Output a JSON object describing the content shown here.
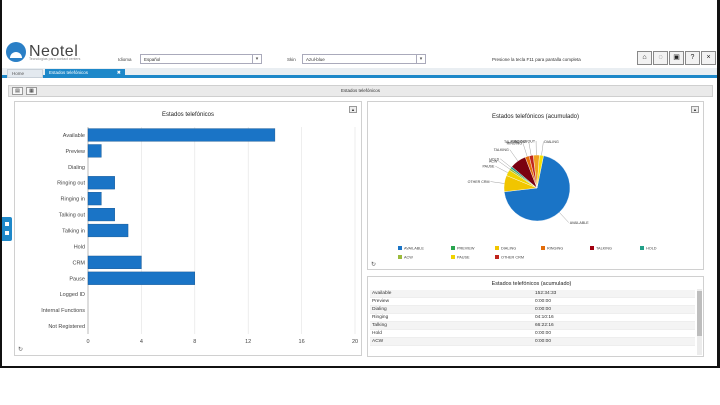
{
  "header": {
    "logo_text": "Neotel",
    "logo_subtitle": "Tecnologías para contact centers",
    "language_label": "Idioma",
    "language_value": "Español",
    "skin_label": "Skin",
    "skin_value": "Azul-blue",
    "message": "Presione la tecla F11 para pantalla completa",
    "icons": [
      "home-icon",
      "chat-icon",
      "book-icon",
      "help-icon",
      "close-icon"
    ]
  },
  "tabs": [
    {
      "label": "Home"
    },
    {
      "label": "Estados telefónicos",
      "active": true,
      "close": "✖"
    }
  ],
  "toolbar": {
    "title": "Estados telefónicos",
    "btn1": "▤",
    "btn2": "▦"
  },
  "bar_panel": {
    "title": "Estados telefónicos"
  },
  "pie_panel": {
    "title": "Estados telefónicos (acumulado)",
    "slice_labels": [
      "AVAILABLE",
      "OTHER CRM",
      "PAUSE",
      "ACW",
      "HOLD",
      "TALKING",
      "RINGING",
      "TALKING OUT",
      "RINGING OUT",
      "DIALING"
    ],
    "legend": [
      {
        "label": "AVAILABLE",
        "color": "#1a74c6"
      },
      {
        "label": "PREVIEW",
        "color": "#2aa54f"
      },
      {
        "label": "DIALING",
        "color": "#f1c500"
      },
      {
        "label": "RINGING",
        "color": "#e36c0a"
      },
      {
        "label": "TALKING",
        "color": "#a1000f"
      },
      {
        "label": "HOLD",
        "color": "#22a088"
      },
      {
        "label": "ACW",
        "color": "#9bbb3c"
      },
      {
        "label": "PAUSE",
        "color": "#f0d300"
      },
      {
        "label": "OTHER CRM",
        "color": "#c0241c"
      }
    ]
  },
  "table_panel": {
    "title": "Estados telefónicos (acumulado)",
    "rows": [
      {
        "state": "Available",
        "value": "152:34:33"
      },
      {
        "state": "Preview",
        "value": "0:00:00"
      },
      {
        "state": "Dialing",
        "value": "0:00:00"
      },
      {
        "state": "Ringing",
        "value": "04:10:16"
      },
      {
        "state": "Talking",
        "value": "66:22:16"
      },
      {
        "state": "Hold",
        "value": "0:00:00"
      },
      {
        "state": "ACW",
        "value": "0:00:00"
      }
    ]
  },
  "chart_data": [
    {
      "type": "bar",
      "orientation": "horizontal",
      "title": "Estados telefónicos",
      "categories": [
        "Available",
        "Preview",
        "Dialing",
        "Ringing out",
        "Ringing in",
        "Talking out",
        "Talking in",
        "Hold",
        "CRM",
        "Pause",
        "Logged ID",
        "Internal Functions",
        "Not Registered"
      ],
      "values": [
        14,
        1,
        0,
        2,
        1,
        2,
        3,
        0,
        4,
        8,
        0,
        0,
        0
      ],
      "xlim": [
        0,
        20
      ],
      "xticks": [
        "0",
        "4",
        "8",
        "12",
        "16",
        "20"
      ],
      "color": "#1a74c6",
      "grid": true
    },
    {
      "type": "pie",
      "title": "Estados telefónicos (acumulado)",
      "labels": [
        "AVAILABLE",
        "OTHER CRM",
        "PAUSE",
        "ACW",
        "HOLD",
        "TALKING",
        "RINGING",
        "TALKING OUT",
        "RINGING OUT",
        "DIALING"
      ],
      "values": [
        70,
        8,
        3,
        1,
        1,
        8,
        2,
        2,
        3,
        2
      ],
      "colors": [
        "#1a74c6",
        "#f1c500",
        "#f0d300",
        "#9bbb3c",
        "#22a088",
        "#7a0010",
        "#e36c0a",
        "#c0241c",
        "#f0a020",
        "#f7e000"
      ]
    }
  ]
}
